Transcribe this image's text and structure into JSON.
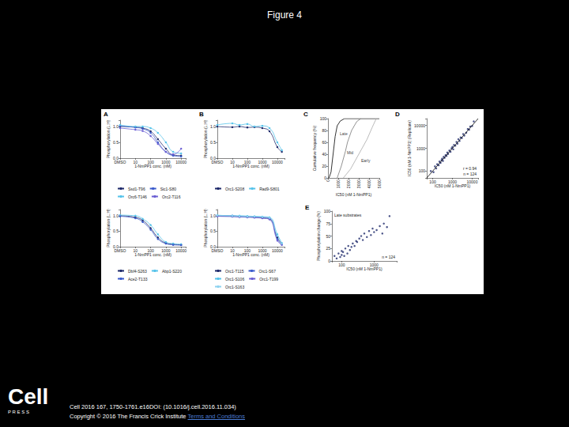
{
  "slide_title": "Figure 4",
  "logo": {
    "name": "Cell",
    "sub": "P R E S S"
  },
  "citation": "Cell 2016 167, 1750-1761.e16DOI: (10.1016/j.cell.2016.11.034)",
  "copyright": "Copyright © 2016 The Francis Crick Institute",
  "link": "Terms and Conditions",
  "chart_data": [
    {
      "panel": "A",
      "type": "line",
      "x_label": "1-NmPP1 conc. (nM)",
      "y_label": "Phosphorylation (L:H)",
      "x": [
        1,
        10,
        30,
        100,
        300,
        1000,
        3000,
        10000
      ],
      "xlim": [
        1,
        20000
      ],
      "xticks": [
        {
          "value": 1,
          "label": "DMSO"
        },
        10,
        100,
        1000,
        10000
      ],
      "ylim": [
        0,
        1.2
      ],
      "yticks": [
        {
          "value": 0,
          "label": "0.0"
        },
        0.5,
        {
          "value": 1,
          "label": "1.0"
        }
      ],
      "log": "x",
      "legend": "bottom",
      "marker": "circle",
      "grid": false,
      "series": [
        {
          "name": "Ssd1-T96",
          "color": "#1f2a6b",
          "values": [
            1.0,
            0.98,
            0.95,
            0.85,
            0.6,
            0.3,
            0.1,
            0.08
          ]
        },
        {
          "name": "Sic1-S80",
          "color": "#3b5bcc",
          "values": [
            1.02,
            0.97,
            0.93,
            0.8,
            0.5,
            0.2,
            0.08,
            0.05
          ]
        },
        {
          "name": "Orc6-T146",
          "color": "#56c3ea",
          "values": [
            1.05,
            1.0,
            1.0,
            0.95,
            0.8,
            0.5,
            0.2,
            0.15
          ]
        },
        {
          "name": "Orc2-T116",
          "color": "#6b5fd3",
          "values": [
            0.95,
            0.9,
            0.86,
            0.7,
            0.45,
            0.2,
            0.12,
            0.3
          ]
        }
      ]
    },
    {
      "panel": "B",
      "type": "line",
      "x_label": "1-NmPP1 conc. (nM)",
      "y_label": "Phosphorylation (L:H)",
      "x": [
        1,
        10,
        30,
        100,
        300,
        1000,
        3000,
        10000,
        20000
      ],
      "xlim": [
        1,
        30000
      ],
      "xticks": [
        {
          "value": 1,
          "label": "DMSO"
        },
        10,
        100,
        1000,
        10000
      ],
      "ylim": [
        0,
        1.2
      ],
      "yticks": [
        {
          "value": 0,
          "label": "0.0"
        },
        0.5,
        {
          "value": 1,
          "label": "1.0"
        }
      ],
      "log": "x",
      "legend": "bottom",
      "marker": "circle",
      "grid": false,
      "series": [
        {
          "name": "Orc1-S208",
          "color": "#1f2a6b",
          "values": [
            1.0,
            0.98,
            1.0,
            0.97,
            0.98,
            0.95,
            0.85,
            0.35,
            0.2
          ]
        },
        {
          "name": "Rad9-S801",
          "color": "#56c3ea",
          "values": [
            1.05,
            1.1,
            1.05,
            1.08,
            1.0,
            1.02,
            0.95,
            0.5,
            0.25
          ]
        }
      ]
    },
    {
      "type": "line",
      "x_label": "1-NmPP1 conc. (nM)",
      "y_label": "Phosphorylation (L:H)",
      "x": [
        1,
        10,
        30,
        100,
        300,
        1000,
        3000,
        10000
      ],
      "xlim": [
        1,
        20000
      ],
      "xticks": [
        {
          "value": 1,
          "label": "DMSO"
        },
        10,
        100,
        1000,
        10000
      ],
      "ylim": [
        0,
        1.2
      ],
      "yticks": [
        {
          "value": 0,
          "label": "0.0"
        },
        0.5,
        {
          "value": 1,
          "label": "1.0"
        }
      ],
      "log": "x",
      "legend": "bottom",
      "marker": "circle",
      "grid": false,
      "series": [
        {
          "name": "Dbf4-S263",
          "color": "#1f2a6b",
          "values": [
            1.0,
            0.95,
            0.85,
            0.6,
            0.3,
            0.12,
            0.08,
            0.06
          ]
        },
        {
          "name": "Abp1-S220",
          "color": "#56c3ea",
          "values": [
            1.02,
            1.0,
            0.9,
            0.7,
            0.4,
            0.15,
            0.1,
            0.08
          ]
        },
        {
          "name": "Ace2-T133",
          "color": "#3b5bcc",
          "values": [
            0.98,
            0.92,
            0.8,
            0.55,
            0.25,
            0.1,
            0.06,
            0.05
          ]
        }
      ]
    },
    {
      "type": "line",
      "x_label": "1-NmPP1 conc. (nM)",
      "y_label": "Phosphorylation (L:H)",
      "x": [
        1,
        10,
        30,
        100,
        300,
        1000,
        3000,
        10000,
        20000
      ],
      "xlim": [
        1,
        30000
      ],
      "xticks": [
        {
          "value": 1,
          "label": "DMSO"
        },
        10,
        100,
        1000,
        10000
      ],
      "ylim": [
        0,
        1.2
      ],
      "yticks": [
        {
          "value": 0,
          "label": "0.0"
        },
        0.5,
        {
          "value": 1,
          "label": "1.0"
        }
      ],
      "log": "x",
      "legend": "bottom",
      "marker": "circle",
      "grid": false,
      "series": [
        {
          "name": "Orc1-T115",
          "color": "#1f2a6b",
          "values": [
            1.0,
            0.98,
            0.97,
            0.96,
            0.95,
            0.93,
            0.9,
            0.3,
            0.1
          ]
        },
        {
          "name": "Orc1-S67",
          "color": "#3b5bcc",
          "values": [
            1.0,
            1.0,
            0.98,
            0.97,
            0.96,
            0.95,
            0.92,
            0.25,
            0.08
          ]
        },
        {
          "name": "Orc1-S106",
          "color": "#56c3ea",
          "values": [
            1.02,
            1.0,
            1.0,
            0.99,
            0.98,
            0.97,
            0.95,
            0.4,
            0.12
          ]
        },
        {
          "name": "Orc1-T199",
          "color": "#6b5fd3",
          "values": [
            0.98,
            0.97,
            0.96,
            0.95,
            0.94,
            0.92,
            0.88,
            0.2,
            0.06
          ]
        },
        {
          "name": "Orc1-S163",
          "color": "#8fd3f0",
          "values": [
            1.01,
            0.99,
            0.98,
            0.97,
            0.97,
            0.96,
            0.93,
            0.35,
            0.1
          ]
        }
      ]
    },
    {
      "panel": "C",
      "type": "line",
      "x_label": "IC50 (nM 1-NmPP1)",
      "y_label": "Cumulative frequency (%)",
      "xlim": [
        0,
        5000
      ],
      "xticks": [
        0,
        1000,
        2000,
        3000,
        4000,
        5000
      ],
      "ylim": [
        0,
        100
      ],
      "yticks": [
        0,
        20,
        40,
        60,
        80,
        100
      ],
      "marker": "none",
      "line_style": "solid",
      "grid": false,
      "series": [
        {
          "name": "Late",
          "color": "#000000",
          "x": [
            100,
            300,
            500,
            700,
            900,
            1200,
            1600,
            5000
          ],
          "values": [
            0,
            10,
            40,
            70,
            88,
            96,
            100,
            100
          ]
        },
        {
          "name": "Mid",
          "color": "#777777",
          "x": [
            900,
            1300,
            1700,
            1900,
            2300,
            2800,
            3200
          ],
          "values": [
            0,
            20,
            45,
            60,
            80,
            95,
            100
          ]
        },
        {
          "name": "Early",
          "color": "#aaaaaa",
          "x": [
            1500,
            2200,
            3000,
            3800,
            4300,
            4700
          ],
          "values": [
            0,
            15,
            40,
            65,
            85,
            100
          ]
        }
      ]
    },
    {
      "panel": "D",
      "type": "scatter",
      "x_label": "IC50 (nM 1-NmPP1)",
      "y_label": "IC50 (nM 1-NmPP1) (Replicate)",
      "xlim": [
        50,
        20000
      ],
      "xticks": [
        100,
        1000,
        10000
      ],
      "ylim": [
        50,
        20000
      ],
      "yticks": [
        100,
        1000,
        10000
      ],
      "log": true,
      "marker": "circle",
      "grid": false,
      "annotations": [
        "r = 0.94",
        "n = 124"
      ],
      "series": [
        {
          "color": "#1f2a6b",
          "x": [
            80,
            110,
            130,
            150,
            170,
            200,
            220,
            250,
            280,
            300,
            330,
            360,
            400,
            450,
            500,
            550,
            600,
            700,
            800,
            900,
            1000,
            1100,
            1200,
            1400,
            1600,
            1800,
            2000,
            2300,
            2600,
            3000,
            3500,
            4000,
            5000,
            6000,
            7000,
            8000,
            10000,
            12000
          ],
          "values": [
            100,
            90,
            160,
            130,
            200,
            180,
            260,
            230,
            300,
            350,
            280,
            420,
            380,
            500,
            460,
            650,
            560,
            800,
            700,
            1000,
            1150,
            900,
            1400,
            1300,
            1900,
            1600,
            2500,
            2100,
            3000,
            2800,
            4200,
            3600,
            4800,
            7000,
            6500,
            9000,
            9500,
            15000
          ]
        },
        {
          "type": "line",
          "marker": "none",
          "line_style": "solid",
          "color": "#000000",
          "x": [
            50,
            20000
          ],
          "values": [
            50,
            20000
          ]
        }
      ]
    },
    {
      "panel": "E",
      "type": "scatter",
      "x_label": "IC50 (nM 1-NmPP1)",
      "y_label": "Phosphorylation change (%)",
      "xlim": [
        50,
        5000
      ],
      "xticks": [
        100,
        1000
      ],
      "ylim": [
        0,
        100
      ],
      "yticks": [
        0,
        25,
        50,
        75,
        100
      ],
      "log": "x",
      "marker": "circle",
      "grid": false,
      "annotations": [
        "Late substrates",
        "n = 124"
      ],
      "series": [
        {
          "color": "#1f2a6b",
          "x": [
            60,
            70,
            80,
            90,
            100,
            100,
            110,
            120,
            130,
            150,
            160,
            180,
            200,
            220,
            250,
            280,
            300,
            350,
            400,
            450,
            500,
            600,
            700,
            800,
            900,
            1000,
            1200,
            1500,
            1800,
            2000,
            2500,
            3000
          ],
          "values": [
            10,
            5,
            15,
            8,
            12,
            20,
            18,
            10,
            25,
            15,
            30,
            22,
            28,
            35,
            30,
            40,
            38,
            45,
            50,
            42,
            55,
            48,
            60,
            52,
            65,
            58,
            62,
            70,
            55,
            75,
            68,
            90
          ]
        }
      ]
    }
  ]
}
